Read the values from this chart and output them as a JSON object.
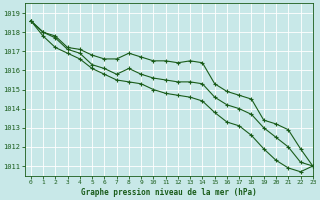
{
  "title": "Graphe pression niveau de la mer (hPa)",
  "background_color": "#c8e8e8",
  "grid_color": "#ffffff",
  "line_color": "#1a5c1a",
  "xlim": [
    -0.5,
    23
  ],
  "ylim": [
    1010.5,
    1019.5
  ],
  "yticks": [
    1011,
    1012,
    1013,
    1014,
    1015,
    1016,
    1017,
    1018,
    1019
  ],
  "xticks": [
    0,
    1,
    2,
    3,
    4,
    5,
    6,
    7,
    8,
    9,
    10,
    11,
    12,
    13,
    14,
    15,
    16,
    17,
    18,
    19,
    20,
    21,
    22,
    23
  ],
  "series": [
    [
      1018.6,
      1018.0,
      1017.8,
      1017.2,
      1017.1,
      1016.8,
      1016.6,
      1016.6,
      1016.9,
      1016.7,
      1016.5,
      1016.5,
      1016.4,
      1016.5,
      1016.4,
      1015.3,
      1014.9,
      1014.7,
      1014.5,
      1013.4,
      1013.2,
      1012.9,
      1011.9,
      1011.0
    ],
    [
      1018.6,
      1018.0,
      1017.7,
      1017.1,
      1016.9,
      1016.3,
      1016.1,
      1015.8,
      1016.1,
      1015.8,
      1015.6,
      1015.5,
      1015.4,
      1015.4,
      1015.3,
      1014.6,
      1014.2,
      1014.0,
      1013.7,
      1013.0,
      1012.5,
      1012.0,
      1011.2,
      1011.0
    ],
    [
      1018.6,
      1017.8,
      1017.2,
      1016.9,
      1016.6,
      1016.1,
      1015.8,
      1015.5,
      1015.4,
      1015.3,
      1015.0,
      1014.8,
      1014.7,
      1014.6,
      1014.4,
      1013.8,
      1013.3,
      1013.1,
      1012.6,
      1011.9,
      1011.3,
      1010.9,
      1010.7,
      1011.0
    ]
  ],
  "title_fontsize": 5.5,
  "tick_fontsize": 5,
  "line_width": 0.8,
  "marker_size": 3
}
